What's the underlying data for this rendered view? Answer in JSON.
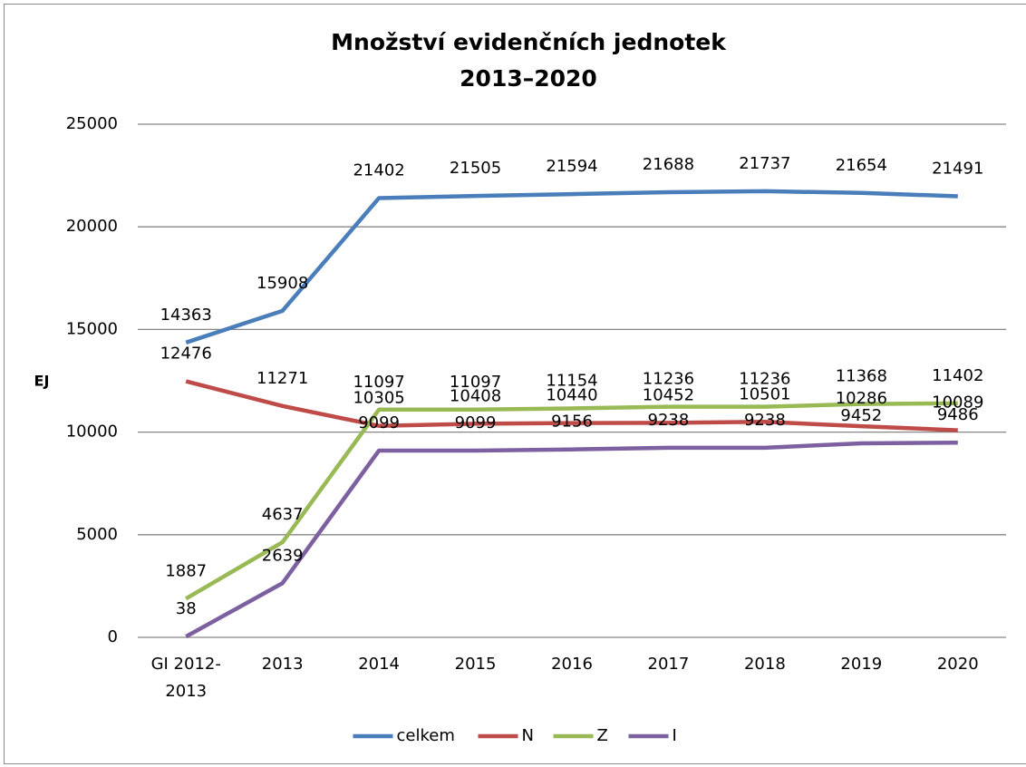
{
  "chart_data": {
    "type": "line",
    "title": [
      "Množství evidenčních jednotek",
      "2013–2020"
    ],
    "ylabel": "EJ",
    "categories": [
      "GI 2012-2013",
      "2013",
      "2014",
      "2015",
      "2016",
      "2017",
      "2018",
      "2019",
      "2020"
    ],
    "series": [
      {
        "name": "celkem",
        "color": "#4a7ebb",
        "values": [
          14363,
          15908,
          21402,
          21505,
          21594,
          21688,
          21737,
          21654,
          21491
        ]
      },
      {
        "name": "N",
        "color": "#be4b48",
        "values": [
          12476,
          11271,
          10305,
          10408,
          10440,
          10452,
          10501,
          10286,
          10089
        ]
      },
      {
        "name": "Z",
        "color": "#98b954",
        "values": [
          1887,
          4637,
          11097,
          11097,
          11154,
          11236,
          11236,
          11368,
          11402
        ]
      },
      {
        "name": "I",
        "color": "#7d60a0",
        "values": [
          38,
          2639,
          9099,
          9099,
          9156,
          9238,
          9238,
          9452,
          9486
        ]
      }
    ],
    "ylim": [
      0,
      25000
    ],
    "yticks": [
      0,
      5000,
      10000,
      15000,
      20000,
      25000
    ],
    "grid": true,
    "legend": "bottom"
  }
}
